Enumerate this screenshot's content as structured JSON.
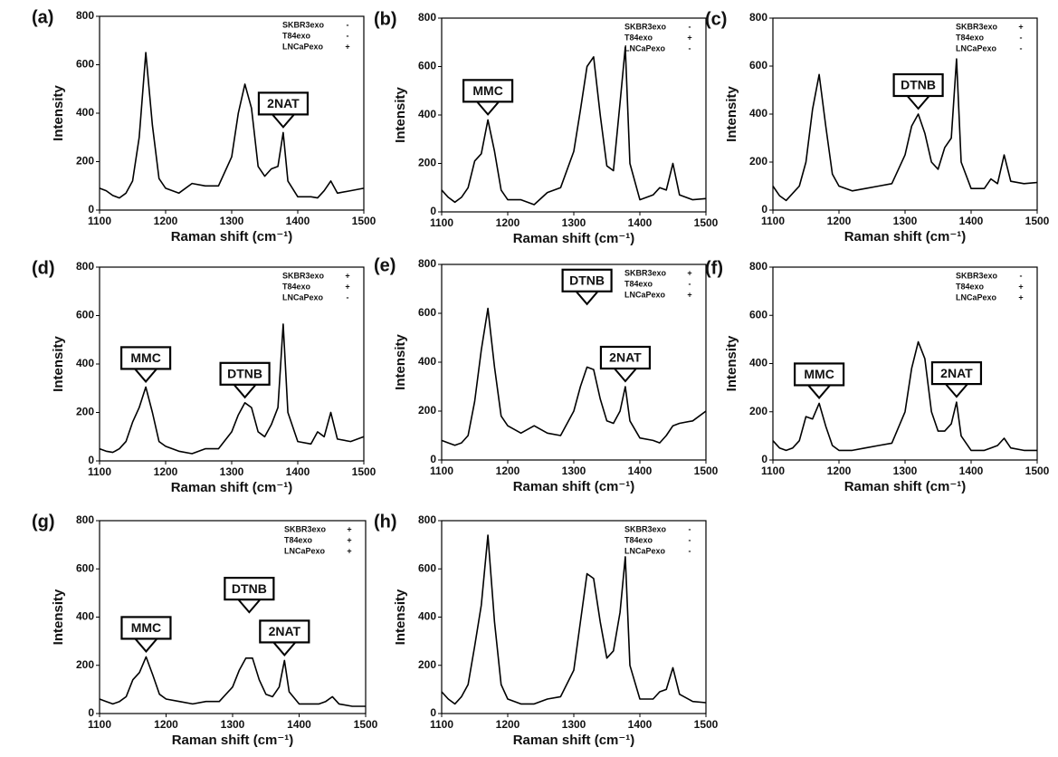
{
  "chart_data": [
    {
      "type": "line",
      "label": "(a)",
      "xlabel": "Raman shift (cm⁻¹)",
      "ylabel": "Intensity",
      "xlim": [
        1100,
        1500
      ],
      "xticks": [
        1100,
        1200,
        1300,
        1400,
        1500
      ],
      "ylim": [
        0,
        800
      ],
      "yticks": [
        0,
        200,
        400,
        600,
        800
      ],
      "legend": [
        {
          "name": "SKBR3exo",
          "sign": "-"
        },
        {
          "name": "T84exo",
          "sign": "-"
        },
        {
          "name": "LNCaPexo",
          "sign": "+"
        }
      ],
      "annotations": [
        {
          "text": "2NAT",
          "x": 1378
        }
      ],
      "x": [
        1100,
        1110,
        1120,
        1130,
        1140,
        1150,
        1160,
        1170,
        1180,
        1190,
        1200,
        1220,
        1240,
        1260,
        1280,
        1300,
        1310,
        1320,
        1330,
        1340,
        1350,
        1360,
        1370,
        1378,
        1385,
        1400,
        1420,
        1430,
        1440,
        1450,
        1460,
        1480,
        1500
      ],
      "series": [
        {
          "color": "#000000",
          "values": [
            90,
            80,
            60,
            50,
            70,
            120,
            300,
            650,
            350,
            130,
            90,
            70,
            110,
            100,
            100,
            220,
            400,
            520,
            420,
            180,
            140,
            170,
            180,
            320,
            120,
            55,
            55,
            50,
            80,
            120,
            70,
            80,
            90
          ]
        }
      ]
    },
    {
      "type": "line",
      "label": "(b)",
      "xlabel": "Raman shift (cm⁻¹)",
      "ylabel": "Intensity",
      "xlim": [
        1100,
        1500
      ],
      "xticks": [
        1100,
        1200,
        1300,
        1400,
        1500
      ],
      "ylim": [
        0,
        800
      ],
      "yticks": [
        0,
        200,
        400,
        600,
        800
      ],
      "legend": [
        {
          "name": "SKBR3exo",
          "sign": "-"
        },
        {
          "name": "T84exo",
          "sign": "+"
        },
        {
          "name": "LNCaPexo",
          "sign": "-"
        }
      ],
      "annotations": [
        {
          "text": "MMC",
          "x": 1170
        }
      ],
      "x": [
        1100,
        1110,
        1120,
        1130,
        1140,
        1150,
        1160,
        1170,
        1180,
        1190,
        1200,
        1220,
        1240,
        1260,
        1280,
        1300,
        1310,
        1320,
        1330,
        1340,
        1350,
        1360,
        1370,
        1378,
        1385,
        1400,
        1420,
        1430,
        1440,
        1450,
        1460,
        1480,
        1500
      ],
      "series": [
        {
          "color": "#000000",
          "values": [
            90,
            60,
            40,
            60,
            100,
            210,
            240,
            380,
            250,
            90,
            50,
            50,
            30,
            80,
            100,
            250,
            420,
            600,
            640,
            400,
            190,
            170,
            450,
            680,
            200,
            50,
            70,
            100,
            90,
            200,
            70,
            50,
            55
          ]
        }
      ]
    },
    {
      "type": "line",
      "label": "(c)",
      "xlabel": "Raman shift (cm⁻¹)",
      "ylabel": "Intensity",
      "xlim": [
        1100,
        1500
      ],
      "xticks": [
        1100,
        1200,
        1300,
        1400,
        1500
      ],
      "ylim": [
        0,
        800
      ],
      "yticks": [
        0,
        200,
        400,
        600,
        800
      ],
      "legend": [
        {
          "name": "SKBR3exo",
          "sign": "+"
        },
        {
          "name": "T84exo",
          "sign": "-"
        },
        {
          "name": "LNCaPexo",
          "sign": "-"
        }
      ],
      "annotations": [
        {
          "text": "DTNB",
          "x": 1320
        }
      ],
      "x": [
        1100,
        1110,
        1120,
        1130,
        1140,
        1150,
        1160,
        1170,
        1180,
        1190,
        1200,
        1220,
        1240,
        1260,
        1280,
        1300,
        1310,
        1320,
        1330,
        1340,
        1350,
        1360,
        1370,
        1378,
        1385,
        1400,
        1420,
        1430,
        1440,
        1450,
        1460,
        1480,
        1500
      ],
      "series": [
        {
          "color": "#000000",
          "values": [
            100,
            60,
            40,
            70,
            100,
            200,
            420,
            565,
            350,
            150,
            100,
            80,
            90,
            100,
            110,
            230,
            350,
            400,
            320,
            200,
            170,
            260,
            300,
            630,
            200,
            90,
            90,
            130,
            110,
            230,
            120,
            110,
            115
          ]
        }
      ]
    },
    {
      "type": "line",
      "label": "(d)",
      "xlabel": "Raman shift (cm⁻¹)",
      "ylabel": "Intensity",
      "xlim": [
        1100,
        1500
      ],
      "xticks": [
        1100,
        1200,
        1300,
        1400,
        1500
      ],
      "ylim": [
        0,
        800
      ],
      "yticks": [
        0,
        200,
        400,
        600,
        800
      ],
      "legend": [
        {
          "name": "SKBR3exo",
          "sign": "+"
        },
        {
          "name": "T84exo",
          "sign": "+"
        },
        {
          "name": "LNCaPexo",
          "sign": "-"
        }
      ],
      "annotations": [
        {
          "text": "MMC",
          "x": 1170
        },
        {
          "text": "DTNB",
          "x": 1320
        }
      ],
      "x": [
        1100,
        1110,
        1120,
        1130,
        1140,
        1150,
        1160,
        1170,
        1180,
        1190,
        1200,
        1220,
        1240,
        1260,
        1280,
        1300,
        1310,
        1320,
        1330,
        1340,
        1350,
        1360,
        1370,
        1378,
        1385,
        1400,
        1420,
        1430,
        1440,
        1450,
        1460,
        1480,
        1500
      ],
      "series": [
        {
          "color": "#000000",
          "values": [
            50,
            40,
            35,
            50,
            80,
            160,
            220,
            305,
            200,
            80,
            60,
            40,
            30,
            50,
            50,
            120,
            190,
            240,
            220,
            120,
            100,
            150,
            220,
            565,
            200,
            80,
            70,
            120,
            100,
            200,
            90,
            80,
            100
          ]
        }
      ]
    },
    {
      "type": "line",
      "label": "(e)",
      "xlabel": "Raman shift (cm⁻¹)",
      "ylabel": "Intensity",
      "xlim": [
        1100,
        1500
      ],
      "xticks": [
        1100,
        1200,
        1300,
        1400,
        1500
      ],
      "ylim": [
        0,
        800
      ],
      "yticks": [
        0,
        200,
        400,
        600,
        800
      ],
      "legend": [
        {
          "name": "SKBR3exo",
          "sign": "+"
        },
        {
          "name": "T84exo",
          "sign": "-"
        },
        {
          "name": "LNCaPexo",
          "sign": "+"
        }
      ],
      "annotations": [
        {
          "text": "DTNB",
          "x": 1320
        },
        {
          "text": "2NAT",
          "x": 1378
        }
      ],
      "x": [
        1100,
        1110,
        1120,
        1130,
        1140,
        1150,
        1160,
        1170,
        1180,
        1190,
        1200,
        1220,
        1240,
        1260,
        1280,
        1300,
        1310,
        1320,
        1330,
        1340,
        1350,
        1360,
        1370,
        1378,
        1385,
        1400,
        1420,
        1430,
        1440,
        1450,
        1460,
        1480,
        1500
      ],
      "series": [
        {
          "color": "#000000",
          "values": [
            80,
            70,
            60,
            70,
            100,
            240,
            450,
            620,
            380,
            180,
            140,
            110,
            140,
            110,
            100,
            200,
            300,
            380,
            370,
            250,
            160,
            150,
            200,
            300,
            160,
            90,
            80,
            70,
            100,
            140,
            150,
            160,
            200
          ]
        }
      ]
    },
    {
      "type": "line",
      "label": "(f)",
      "xlabel": "Raman shift (cm⁻¹)",
      "ylabel": "Intensity",
      "xlim": [
        1100,
        1500
      ],
      "xticks": [
        1100,
        1200,
        1300,
        1400,
        1500
      ],
      "ylim": [
        0,
        800
      ],
      "yticks": [
        0,
        200,
        400,
        600,
        800
      ],
      "legend": [
        {
          "name": "SKBR3exo",
          "sign": "-"
        },
        {
          "name": "T84exo",
          "sign": "+"
        },
        {
          "name": "LNCaPexo",
          "sign": "+"
        }
      ],
      "annotations": [
        {
          "text": "MMC",
          "x": 1170
        },
        {
          "text": "2NAT",
          "x": 1378
        }
      ],
      "x": [
        1100,
        1110,
        1120,
        1130,
        1140,
        1150,
        1160,
        1170,
        1180,
        1190,
        1200,
        1220,
        1240,
        1260,
        1280,
        1300,
        1310,
        1320,
        1330,
        1340,
        1350,
        1360,
        1370,
        1378,
        1385,
        1400,
        1420,
        1430,
        1440,
        1450,
        1460,
        1480,
        1500
      ],
      "series": [
        {
          "color": "#000000",
          "values": [
            80,
            50,
            40,
            50,
            80,
            180,
            170,
            235,
            140,
            60,
            40,
            40,
            50,
            60,
            70,
            200,
            380,
            490,
            420,
            200,
            120,
            120,
            150,
            240,
            100,
            40,
            40,
            50,
            60,
            90,
            50,
            40,
            40
          ]
        }
      ]
    },
    {
      "type": "line",
      "label": "(g)",
      "xlabel": "Raman shift (cm⁻¹)",
      "ylabel": "Intensity",
      "xlim": [
        1100,
        1500
      ],
      "xticks": [
        1100,
        1200,
        1300,
        1400,
        1500
      ],
      "ylim": [
        0,
        800
      ],
      "yticks": [
        0,
        200,
        400,
        600,
        800
      ],
      "legend": [
        {
          "name": "SKBR3exo",
          "sign": "+"
        },
        {
          "name": "T84exo",
          "sign": "+"
        },
        {
          "name": "LNCaPexo",
          "sign": "+"
        }
      ],
      "annotations": [
        {
          "text": "MMC",
          "x": 1170
        },
        {
          "text": "DTNB",
          "x": 1325
        },
        {
          "text": "2NAT",
          "x": 1378
        }
      ],
      "x": [
        1100,
        1110,
        1120,
        1130,
        1140,
        1150,
        1160,
        1170,
        1180,
        1190,
        1200,
        1220,
        1240,
        1260,
        1280,
        1300,
        1310,
        1320,
        1330,
        1340,
        1350,
        1360,
        1370,
        1378,
        1385,
        1400,
        1420,
        1430,
        1440,
        1450,
        1460,
        1480,
        1500
      ],
      "series": [
        {
          "color": "#000000",
          "values": [
            60,
            50,
            40,
            50,
            70,
            140,
            170,
            235,
            160,
            80,
            60,
            50,
            40,
            50,
            50,
            110,
            180,
            230,
            230,
            140,
            80,
            70,
            110,
            220,
            90,
            40,
            40,
            40,
            50,
            70,
            40,
            30,
            30
          ]
        }
      ]
    },
    {
      "type": "line",
      "label": "(h)",
      "xlabel": "Raman shift (cm⁻¹)",
      "ylabel": "Intensity",
      "xlim": [
        1100,
        1500
      ],
      "xticks": [
        1100,
        1200,
        1300,
        1400,
        1500
      ],
      "ylim": [
        0,
        800
      ],
      "yticks": [
        0,
        200,
        400,
        600,
        800
      ],
      "legend": [
        {
          "name": "SKBR3exo",
          "sign": "-"
        },
        {
          "name": "T84exo",
          "sign": "-"
        },
        {
          "name": "LNCaPexo",
          "sign": "-"
        }
      ],
      "annotations": [],
      "x": [
        1100,
        1110,
        1120,
        1130,
        1140,
        1150,
        1160,
        1170,
        1180,
        1190,
        1200,
        1220,
        1240,
        1260,
        1280,
        1300,
        1310,
        1320,
        1330,
        1340,
        1350,
        1360,
        1370,
        1378,
        1385,
        1400,
        1420,
        1430,
        1440,
        1450,
        1460,
        1480,
        1500
      ],
      "series": [
        {
          "color": "#000000",
          "values": [
            90,
            60,
            40,
            70,
            120,
            280,
            450,
            740,
            380,
            120,
            60,
            40,
            40,
            60,
            70,
            180,
            380,
            580,
            560,
            380,
            230,
            260,
            420,
            650,
            200,
            60,
            60,
            90,
            100,
            190,
            80,
            50,
            45
          ]
        }
      ]
    }
  ]
}
